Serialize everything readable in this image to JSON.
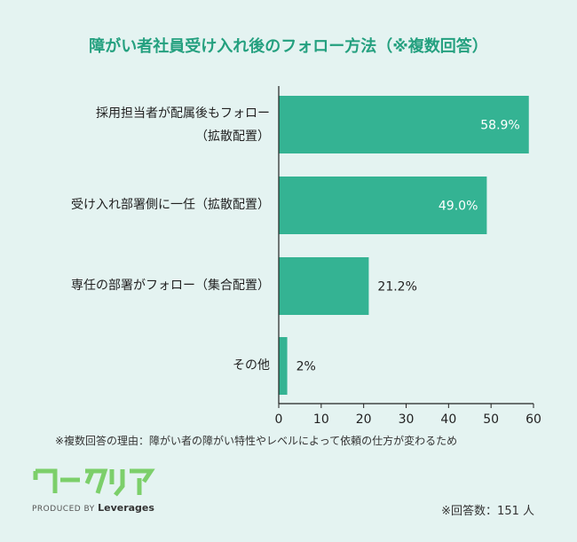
{
  "chart_data": {
    "type": "bar",
    "orientation": "horizontal",
    "title": "障がい者社員受け入れ後のフォロー方法（※複数回答）",
    "categories": [
      [
        "採用担当者が配属後もフォロー",
        "（拡散配置）"
      ],
      [
        "受け入れ部署側に一任（拡散配置）"
      ],
      [
        "専任の部署がフォロー（集合配置）"
      ],
      [
        "その他"
      ]
    ],
    "values": [
      58.9,
      49.0,
      21.2,
      2
    ],
    "value_labels": [
      "58.9%",
      "49.0%",
      "21.2%",
      "2%"
    ],
    "xlim": [
      0,
      60
    ],
    "xticks": [
      0,
      10,
      20,
      30,
      40,
      50,
      60
    ],
    "grid": false,
    "bar_color": "#34b393",
    "title_color": "#24a07f"
  },
  "note": "※複数回答の理由：障がい者の障がい特性やレベルによって依頼の仕方が変わるため",
  "respondents": "※回答数：151 人",
  "logo": {
    "wordmark": "ワークリア",
    "produced_by": "PRODUCED BY",
    "brand": "Leverages"
  }
}
